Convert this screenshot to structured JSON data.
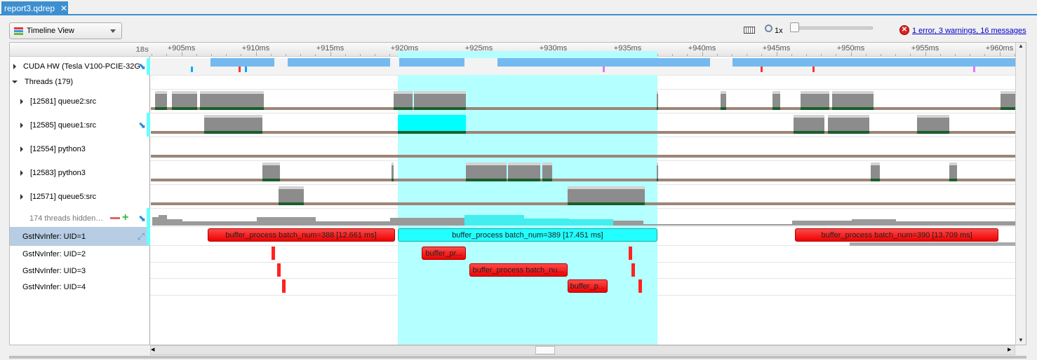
{
  "tab": {
    "title": "report3.qdrep",
    "close": "✕"
  },
  "toolbar": {
    "view_label": "Timeline View",
    "zoom_label": "1x",
    "zoom_level": 0,
    "diagnostics": "1 error, 3 warnings, 16 messages"
  },
  "ruler": {
    "base": "18s",
    "ticks": [
      "+905ms",
      "+910ms",
      "+915ms",
      "+920ms",
      "+925ms",
      "+930ms",
      "+935ms",
      "+940ms",
      "+945ms",
      "+950ms",
      "+955ms",
      "+960ms"
    ],
    "tick_ms": [
      905,
      910,
      915,
      920,
      925,
      930,
      935,
      940,
      945,
      950,
      955,
      960
    ]
  },
  "rows": {
    "cuda": "CUDA HW (Tesla V100-PCIE-32G",
    "threads": "Threads (179)",
    "thread_list": [
      {
        "label": "[12581] queue2:src",
        "busy": [
          [
            903.2,
            904.0
          ],
          [
            904.3,
            906.0
          ],
          [
            906.2,
            910.5
          ],
          [
            919.2,
            920.5
          ],
          [
            920.6,
            924.1
          ],
          [
            936.9,
            937.0
          ],
          [
            941.2,
            941.6
          ],
          [
            944.7,
            945.2
          ],
          [
            946.6,
            948.5
          ],
          [
            948.7,
            951.5
          ],
          [
            960.0,
            961.0
          ]
        ]
      },
      {
        "label": "[12585] queue1:src",
        "busy": [
          [
            906.5,
            910.4
          ],
          [
            919.5,
            924.1
          ],
          [
            946.1,
            948.2
          ],
          [
            948.4,
            951.2
          ],
          [
            954.4,
            956.6
          ]
        ]
      },
      {
        "label": "[12554] python3",
        "busy": []
      },
      {
        "label": "[12583] python3",
        "busy": [
          [
            910.4,
            911.6
          ],
          [
            919.1,
            919.2
          ],
          [
            924.1,
            925.4
          ],
          [
            925.4,
            926.8
          ],
          [
            926.9,
            929.1
          ],
          [
            929.2,
            929.9
          ],
          [
            936.9,
            937.0
          ],
          [
            951.3,
            951.9
          ],
          [
            956.6,
            957.1
          ]
        ]
      },
      {
        "label": "[12571] queue5:src",
        "busy": [
          [
            911.5,
            913.2
          ],
          [
            930.9,
            936.1
          ]
        ]
      }
    ],
    "hidden": "174 threads hidden…",
    "gst": [
      "GstNvInfer: UID=1",
      "GstNvInfer: UID=2",
      "GstNvInfer: UID=3",
      "GstNvInfer: UID=4"
    ]
  },
  "cuda_busy": [
    [
      906.9,
      911.2
    ],
    [
      912.1,
      919.0
    ],
    [
      919.6,
      924.0
    ],
    [
      926.2,
      940.5
    ],
    [
      942.0,
      961.0
    ]
  ],
  "selection_ms": [
    919.5,
    936.95
  ],
  "ranges": [
    {
      "row": 0,
      "start": 906.7,
      "end": 919.3,
      "label": "buffer_process batch_num=388 [12.661 ms]",
      "color": "red"
    },
    {
      "row": 0,
      "start": 919.5,
      "end": 936.95,
      "label": "buffer_process batch_num=389 [17.451 ms]",
      "color": "cyan"
    },
    {
      "row": 0,
      "start": 946.2,
      "end": 959.9,
      "label": "buffer_process batch_num=390 [13.709 ms]",
      "color": "red"
    },
    {
      "row": 1,
      "start": 921.1,
      "end": 924.1,
      "label": "buffer_pr...",
      "color": "red"
    },
    {
      "row": 2,
      "start": 924.3,
      "end": 930.9,
      "label": "buffer_process batch_nu...",
      "color": "red"
    },
    {
      "row": 3,
      "start": 930.9,
      "end": 933.6,
      "label": "buffer_p...",
      "color": "red"
    }
  ],
  "marks": [
    [
      1,
      911.0
    ],
    [
      1,
      935.0
    ],
    [
      2,
      911.4
    ],
    [
      2,
      935.2
    ],
    [
      3,
      911.7
    ],
    [
      3,
      935.7
    ]
  ],
  "colors": {
    "accent": "#3c8fd0",
    "selection": "#b0ffff",
    "busy": "#8c8c8c",
    "track": "#9c8577",
    "cuda": "#74b9ef"
  }
}
